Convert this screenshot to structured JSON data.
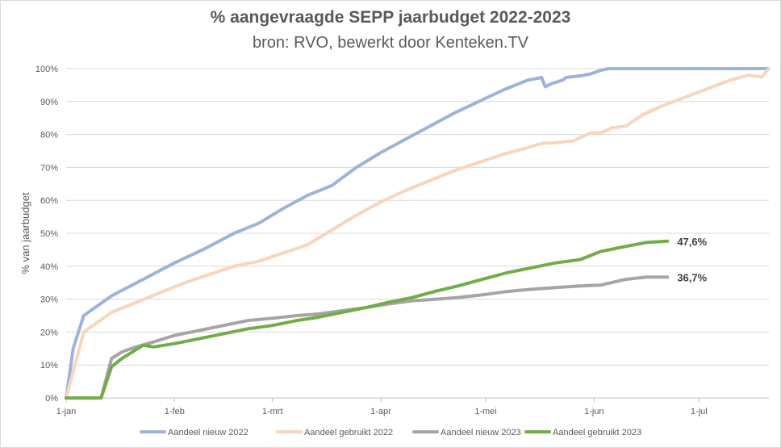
{
  "chart_data": {
    "type": "line",
    "title": "% aangevraagde SEPP jaarbudget 2022-2023",
    "subtitle": "bron: RVO, bewerkt door Kenteken.TV",
    "xlabel": "",
    "ylabel": "% van jaarbudget",
    "ylim": [
      0,
      100
    ],
    "xlim": [
      0,
      201
    ],
    "grid": "horizontal",
    "legend_position": "bottom",
    "y_ticks": [
      {
        "value": 0,
        "label": "0%"
      },
      {
        "value": 10,
        "label": "10%"
      },
      {
        "value": 20,
        "label": "20%"
      },
      {
        "value": 30,
        "label": "30%"
      },
      {
        "value": 40,
        "label": "40%"
      },
      {
        "value": 50,
        "label": "50%"
      },
      {
        "value": 60,
        "label": "60%"
      },
      {
        "value": 70,
        "label": "70%"
      },
      {
        "value": 80,
        "label": "80%"
      },
      {
        "value": 90,
        "label": "90%"
      },
      {
        "value": 100,
        "label": "100%"
      }
    ],
    "x_ticks": [
      {
        "value": 0,
        "label": "1-jan"
      },
      {
        "value": 31,
        "label": "1-feb"
      },
      {
        "value": 59,
        "label": "1-mrt"
      },
      {
        "value": 90,
        "label": "1-apr"
      },
      {
        "value": 120,
        "label": "1-mei"
      },
      {
        "value": 151,
        "label": "1-jun"
      },
      {
        "value": 181,
        "label": "1-jul"
      }
    ],
    "series": [
      {
        "name": "Aandeel nieuw 2022",
        "color": "#9db3da",
        "points": [
          [
            0,
            0
          ],
          [
            2,
            15
          ],
          [
            5,
            25
          ],
          [
            13,
            31
          ],
          [
            22,
            36
          ],
          [
            31,
            41
          ],
          [
            40,
            45.5
          ],
          [
            48,
            50
          ],
          [
            55,
            53
          ],
          [
            62,
            57.5
          ],
          [
            69,
            61.5
          ],
          [
            76,
            64.5
          ],
          [
            83,
            70
          ],
          [
            90,
            74.5
          ],
          [
            97,
            78.5
          ],
          [
            104,
            82.5
          ],
          [
            111,
            86.5
          ],
          [
            118,
            90
          ],
          [
            125,
            93.5
          ],
          [
            132,
            96.5
          ],
          [
            136,
            97.3
          ],
          [
            137,
            94.5
          ],
          [
            139,
            95.5
          ],
          [
            142,
            96.5
          ],
          [
            143,
            97.3
          ],
          [
            147,
            97.8
          ],
          [
            150,
            98.4
          ],
          [
            153,
            99.5
          ],
          [
            155,
            100
          ],
          [
            163,
            100
          ],
          [
            170,
            100
          ],
          [
            180,
            100
          ],
          [
            188,
            100
          ],
          [
            201,
            100
          ]
        ]
      },
      {
        "name": "Aandeel gebruikt 2022",
        "color": "#f8d5bc",
        "points": [
          [
            0,
            0
          ],
          [
            5,
            20
          ],
          [
            13,
            26
          ],
          [
            20,
            29
          ],
          [
            27,
            32
          ],
          [
            34,
            35
          ],
          [
            41,
            37.5
          ],
          [
            48,
            40
          ],
          [
            55,
            41.5
          ],
          [
            62,
            44
          ],
          [
            69,
            46.5
          ],
          [
            76,
            51
          ],
          [
            83,
            55.5
          ],
          [
            90,
            59.5
          ],
          [
            97,
            63
          ],
          [
            104,
            66
          ],
          [
            111,
            69
          ],
          [
            118,
            71.5
          ],
          [
            125,
            74
          ],
          [
            132,
            76
          ],
          [
            136,
            77.3
          ],
          [
            140,
            77.5
          ],
          [
            144,
            78
          ],
          [
            145,
            78
          ],
          [
            146,
            78.5
          ],
          [
            150,
            80.5
          ],
          [
            153,
            80.5
          ],
          [
            156,
            82
          ],
          [
            160,
            82.5
          ],
          [
            165,
            86
          ],
          [
            170,
            88.5
          ],
          [
            175,
            90.5
          ],
          [
            180,
            92.5
          ],
          [
            185,
            94.5
          ],
          [
            190,
            96.5
          ],
          [
            195,
            98
          ],
          [
            199,
            97.5
          ],
          [
            201,
            100
          ]
        ]
      },
      {
        "name": "Aandeel nieuw 2023",
        "color": "#a5a5a5",
        "endLabel": "36,7%",
        "points": [
          [
            0,
            0
          ],
          [
            10,
            0
          ],
          [
            13,
            12
          ],
          [
            16,
            14
          ],
          [
            20,
            15.5
          ],
          [
            25,
            17
          ],
          [
            31,
            19
          ],
          [
            38,
            20.5
          ],
          [
            45,
            22
          ],
          [
            52,
            23.5
          ],
          [
            59,
            24.2
          ],
          [
            66,
            25
          ],
          [
            72,
            25.5
          ],
          [
            79,
            26.5
          ],
          [
            86,
            27.5
          ],
          [
            92,
            28.5
          ],
          [
            99,
            29.5
          ],
          [
            106,
            30
          ],
          [
            112,
            30.5
          ],
          [
            119,
            31.3
          ],
          [
            126,
            32.3
          ],
          [
            133,
            33
          ],
          [
            140,
            33.5
          ],
          [
            147,
            34
          ],
          [
            153,
            34.3
          ],
          [
            160,
            36
          ],
          [
            166,
            36.7
          ],
          [
            172,
            36.7
          ]
        ]
      },
      {
        "name": "Aandeel gebruikt 2023",
        "color": "#70ad47",
        "endLabel": "47,6%",
        "points": [
          [
            0,
            0
          ],
          [
            10,
            0
          ],
          [
            13,
            9.5
          ],
          [
            16,
            12
          ],
          [
            19,
            14
          ],
          [
            22,
            16
          ],
          [
            25,
            15.5
          ],
          [
            31,
            16.5
          ],
          [
            38,
            18
          ],
          [
            45,
            19.5
          ],
          [
            52,
            21
          ],
          [
            59,
            22
          ],
          [
            66,
            23.5
          ],
          [
            72,
            24.5
          ],
          [
            79,
            26
          ],
          [
            86,
            27.5
          ],
          [
            92,
            29
          ],
          [
            99,
            30.5
          ],
          [
            106,
            32.5
          ],
          [
            112,
            34
          ],
          [
            119,
            36
          ],
          [
            126,
            38
          ],
          [
            133,
            39.5
          ],
          [
            140,
            41
          ],
          [
            147,
            42
          ],
          [
            153,
            44.5
          ],
          [
            160,
            46
          ],
          [
            166,
            47.2
          ],
          [
            172,
            47.6
          ]
        ]
      }
    ]
  }
}
